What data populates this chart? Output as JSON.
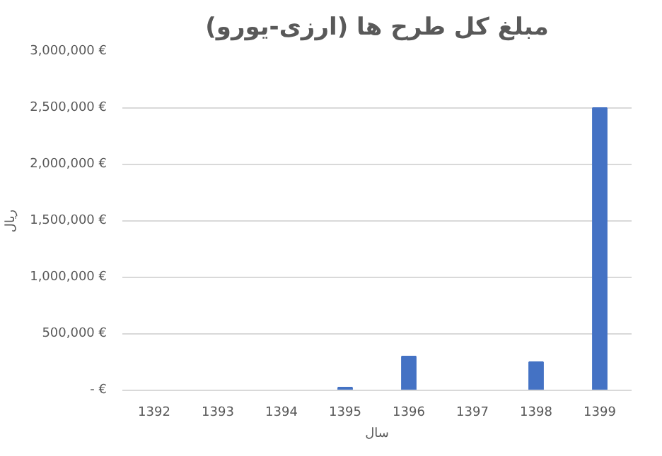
{
  "chart_data": {
    "type": "bar",
    "title": "مبلغ کل طرح ها (ارزی-یورو)",
    "xlabel": "سال",
    "ylabel": "ریال",
    "categories": [
      "1392",
      "1393",
      "1394",
      "1395",
      "1396",
      "1397",
      "1398",
      "1399"
    ],
    "values": [
      0,
      0,
      0,
      25000,
      300000,
      0,
      250000,
      2500000
    ],
    "color": "#4472c4",
    "ylim": [
      0,
      3000000
    ],
    "yticks": [
      {
        "value": 0,
        "label": "- €"
      },
      {
        "value": 500000,
        "label": "500,000 €"
      },
      {
        "value": 1000000,
        "label": "1,000,000 €"
      },
      {
        "value": 1500000,
        "label": "1,500,000 €"
      },
      {
        "value": 2000000,
        "label": "2,000,000 €"
      },
      {
        "value": 2500000,
        "label": "2,500,000 €"
      },
      {
        "value": 3000000,
        "label": "3,000,000 €"
      }
    ],
    "grid": "y"
  }
}
